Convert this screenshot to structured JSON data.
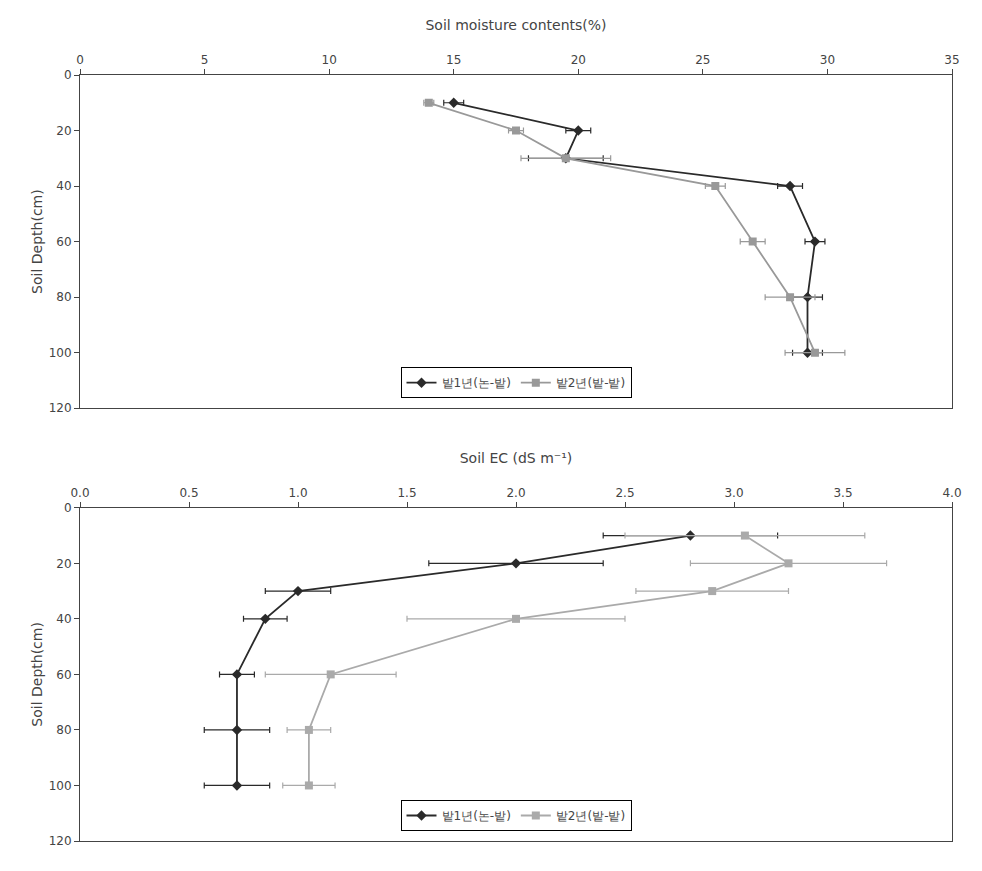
{
  "chart_data": [
    {
      "type": "line",
      "xlabel": "Soil moisture contents(%)",
      "ylabel": "Soil Depth(cm)",
      "xlim": [
        0,
        35
      ],
      "ylim": [
        120,
        0
      ],
      "xticks": [
        0,
        5,
        10,
        15,
        20,
        25,
        30,
        35
      ],
      "yticks": [
        0,
        20,
        40,
        60,
        80,
        100,
        120
      ],
      "grid": false,
      "legend": "lower center",
      "series": [
        {
          "name": "밭1년(논-밭)",
          "color": "#2a2a2a",
          "marker": "diamond",
          "line_style": "solid",
          "x": [
            15.0,
            20.0,
            19.5,
            28.5,
            29.5,
            29.2,
            29.2
          ],
          "y": [
            10,
            20,
            30,
            40,
            60,
            80,
            100
          ],
          "xerr": [
            0.4,
            0.5,
            1.5,
            0.5,
            0.4,
            0.6,
            0.6
          ]
        },
        {
          "name": "밭2년(밭-밭)",
          "color": "#999999",
          "marker": "square",
          "line_style": "solid",
          "x": [
            14.0,
            17.5,
            19.5,
            25.5,
            27.0,
            28.5,
            29.5
          ],
          "y": [
            10,
            20,
            30,
            40,
            60,
            80,
            100
          ],
          "xerr": [
            0.2,
            0.3,
            1.8,
            0.4,
            0.5,
            1.0,
            1.2
          ]
        }
      ]
    },
    {
      "type": "line",
      "xlabel": "Soil EC (dS m⁻¹)",
      "ylabel": "Soil Depth(cm)",
      "xlim": [
        0,
        4
      ],
      "ylim": [
        120,
        0
      ],
      "xticks": [
        {
          "value": 0,
          "label": "0.0"
        },
        0.5,
        {
          "value": 1.0,
          "label": "1.0"
        },
        1.5,
        {
          "value": 2.0,
          "label": "2.0"
        },
        2.5,
        {
          "value": 3.0,
          "label": "3.0"
        },
        3.5,
        {
          "value": 4.0,
          "label": "4.0"
        }
      ],
      "yticks": [
        0,
        20,
        40,
        60,
        80,
        100,
        120
      ],
      "grid": false,
      "legend": "lower center",
      "series": [
        {
          "name": "밭1년(논-밭)",
          "color": "#2a2a2a",
          "marker": "diamond",
          "line_style": "solid",
          "x": [
            2.8,
            2.0,
            1.0,
            0.85,
            0.72,
            0.72,
            0.72
          ],
          "y": [
            10,
            20,
            30,
            40,
            60,
            80,
            100
          ],
          "xerr": [
            0.4,
            0.4,
            0.15,
            0.1,
            0.08,
            0.15,
            0.15
          ]
        },
        {
          "name": "밭2년(밭-밭)",
          "color": "#aaaaaa",
          "marker": "square",
          "line_style": "solid",
          "x": [
            3.05,
            3.25,
            2.9,
            2.0,
            1.15,
            1.05,
            1.05
          ],
          "y": [
            10,
            20,
            30,
            40,
            60,
            80,
            100
          ],
          "xerr": [
            0.55,
            0.45,
            0.35,
            0.5,
            0.3,
            0.1,
            0.12
          ]
        }
      ]
    }
  ]
}
